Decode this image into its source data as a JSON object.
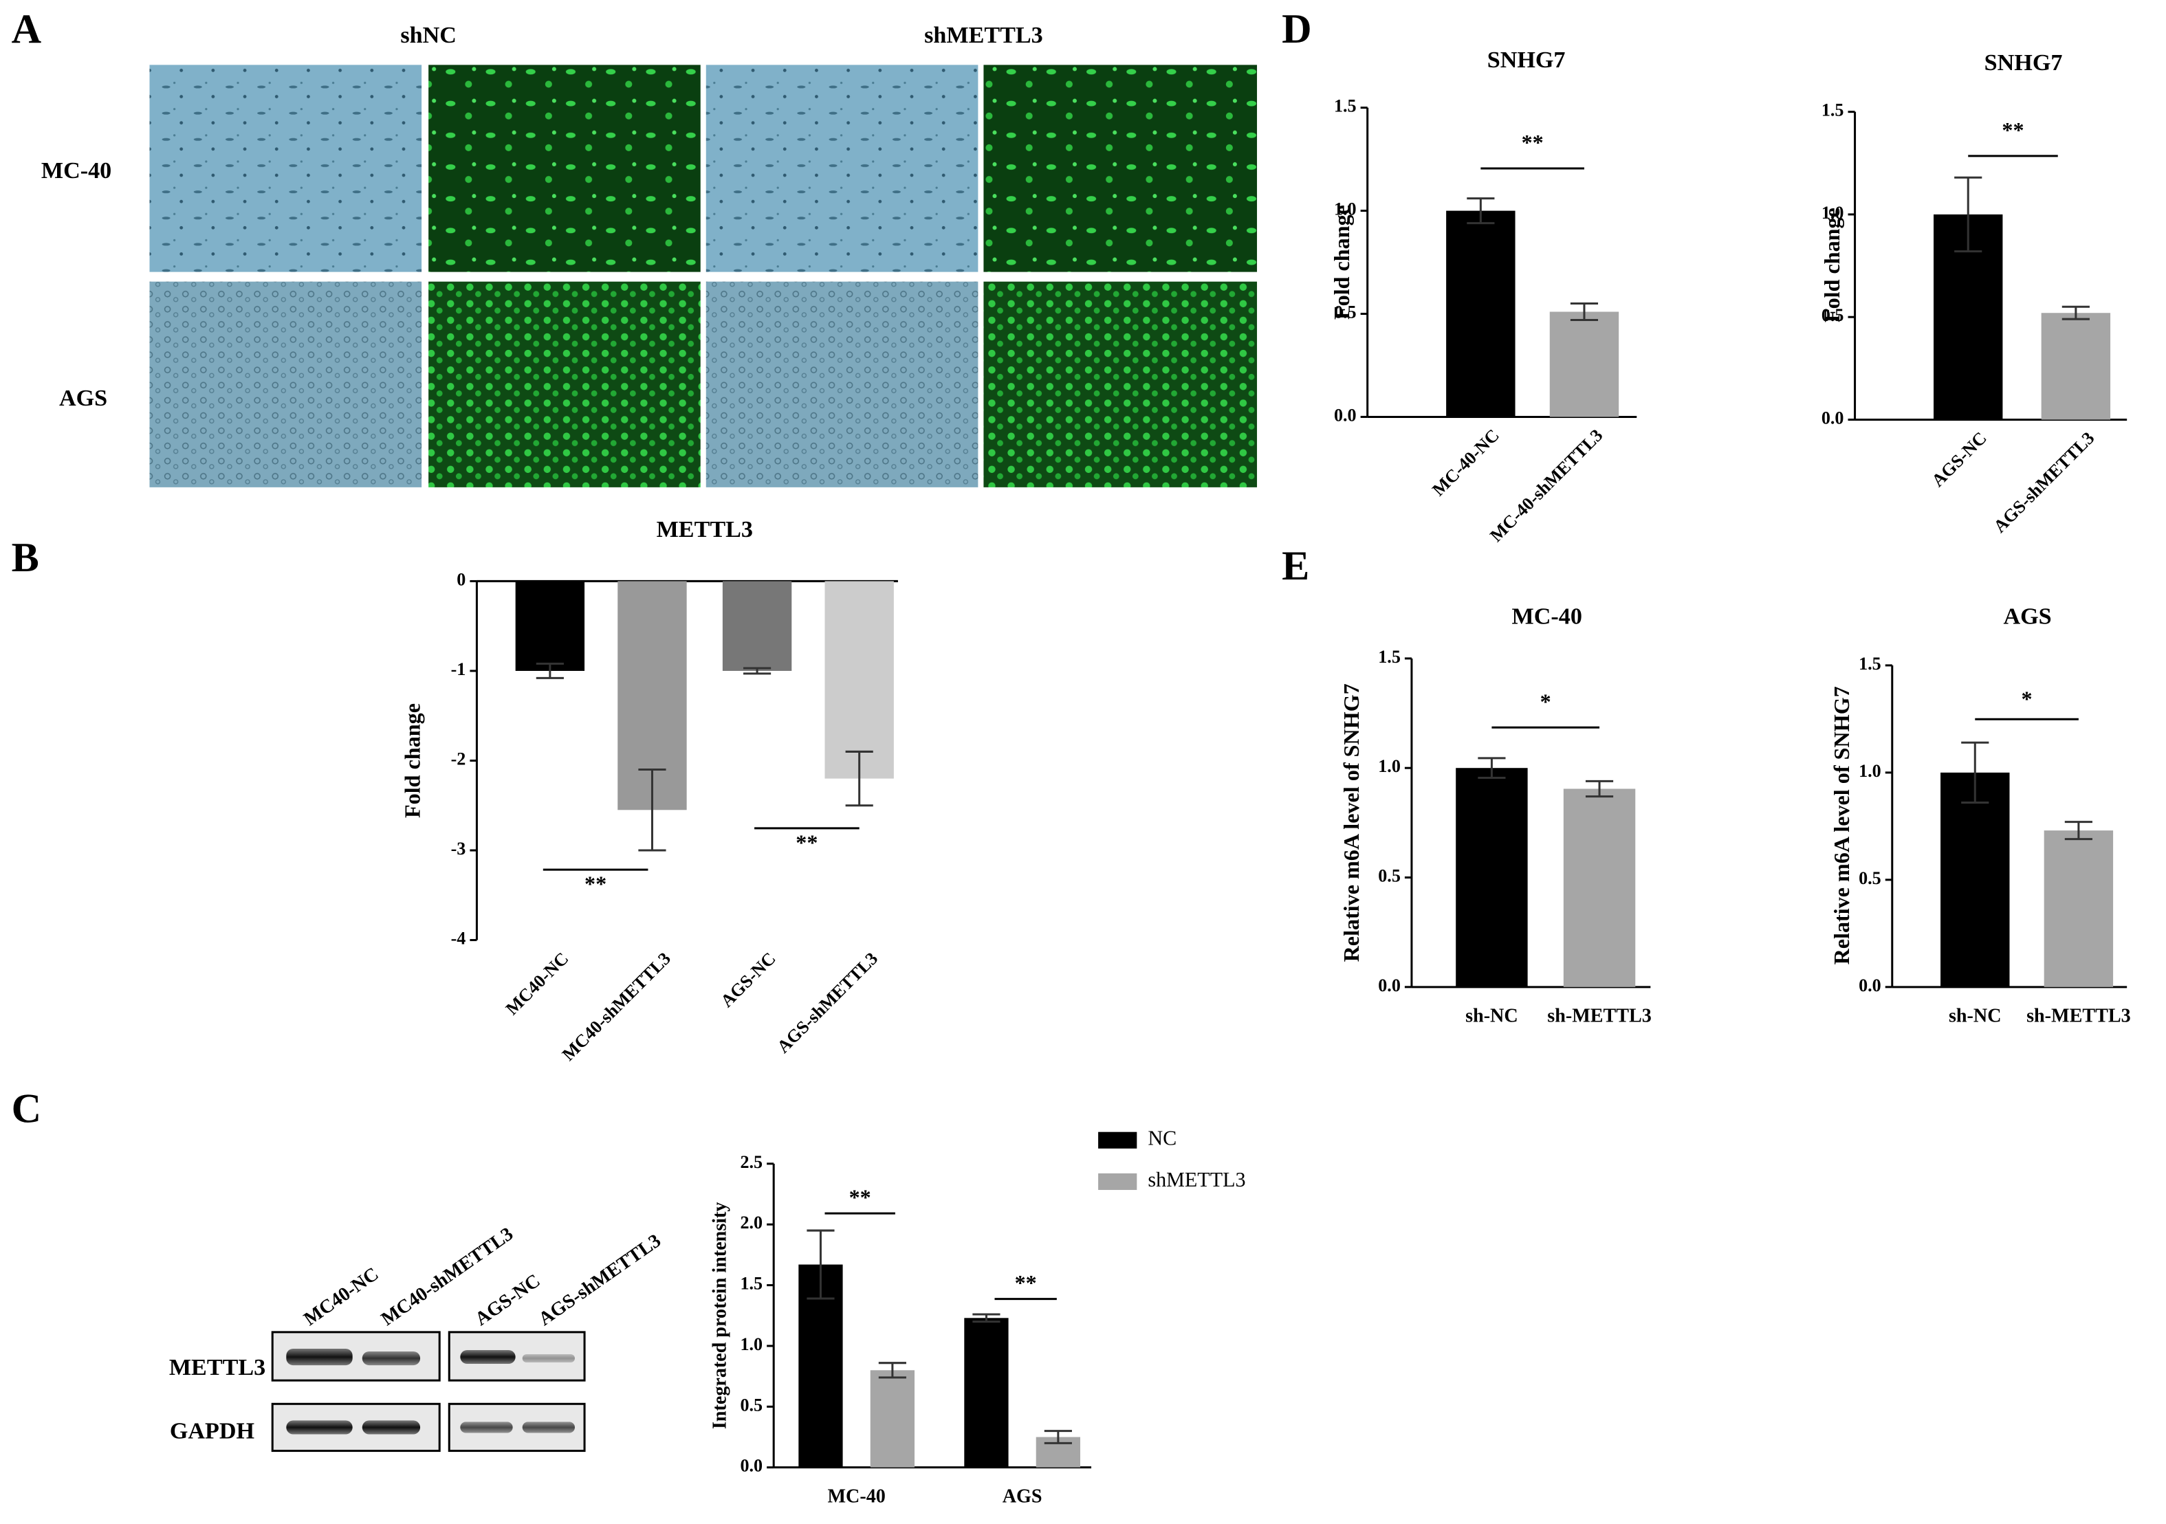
{
  "panel_labels": [
    "A",
    "B",
    "C",
    "D",
    "E"
  ],
  "panel_a": {
    "columns": [
      "shNC",
      "shMETTL3"
    ],
    "rows": [
      "MC-40",
      "AGS"
    ]
  },
  "panel_c_blot": {
    "lanes": [
      "MC40-NC",
      "MC40-shMETTL3",
      "AGS-NC",
      "AGS-shMETTL3"
    ],
    "proteins": [
      "METTL3",
      "GAPDH"
    ]
  },
  "chart_data": [
    {
      "type": "bar",
      "title": "METTL3",
      "ylabel": "Fold change",
      "categories": [
        "MC40-NC",
        "MC40-shMETTL3",
        "AGS-NC",
        "AGS-shMETTL3"
      ],
      "values": [
        -1,
        -2.55,
        -1,
        -2.2
      ],
      "errors": [
        0.08,
        0.45,
        0.03,
        0.3
      ],
      "colors": [
        "#000000",
        "#999999",
        "#777777",
        "#cccccc"
      ],
      "ylim": [
        -4,
        0
      ],
      "yticks": [
        -4,
        -3,
        -2,
        -1,
        0
      ],
      "annotations": [
        "**",
        "**"
      ]
    },
    {
      "type": "grouped-bar",
      "ylabel": "Integrated protein intensity",
      "categories": [
        "MC-40",
        "AGS"
      ],
      "series": [
        {
          "name": "NC",
          "color": "#000000",
          "values": [
            1.67,
            1.23
          ],
          "errors": [
            0.28,
            0.03
          ]
        },
        {
          "name": "shMETTL3",
          "color": "#a6a6a6",
          "values": [
            0.8,
            0.25
          ],
          "errors": [
            0.06,
            0.05
          ]
        }
      ],
      "ylim": [
        0,
        2.5
      ],
      "yticks": [
        {
          "value": 0,
          "label": "0.0"
        },
        0.5,
        {
          "value": 1,
          "label": "1.0"
        },
        1.5,
        {
          "value": 2,
          "label": "2.0"
        },
        2.5
      ],
      "annotations": [
        "**",
        "**"
      ],
      "legend": "top-right"
    },
    {
      "type": "bar",
      "title": "SNHG7",
      "ylabel": "Fold change",
      "categories": [
        "MC-40-NC",
        "MC-40-shMETTL3"
      ],
      "values": [
        1.0,
        0.51
      ],
      "errors": [
        0.06,
        0.04
      ],
      "colors": [
        "#000000",
        "#a6a6a6"
      ],
      "ylim": [
        0,
        1.5
      ],
      "yticks": [
        {
          "value": 0,
          "label": "0.0"
        },
        0.5,
        {
          "value": 1,
          "label": "1.0"
        },
        1.5
      ],
      "annotations": [
        "**"
      ]
    },
    {
      "type": "bar",
      "title": "SNHG7",
      "ylabel": "Fold change",
      "categories": [
        "AGS-NC",
        "AGS-shMETTL3"
      ],
      "values": [
        1.0,
        0.52
      ],
      "errors": [
        0.18,
        0.03
      ],
      "colors": [
        "#000000",
        "#a6a6a6"
      ],
      "ylim": [
        0,
        1.5
      ],
      "yticks": [
        {
          "value": 0,
          "label": "0.0"
        },
        0.5,
        {
          "value": 1,
          "label": "1.0"
        },
        1.5
      ],
      "annotations": [
        "**"
      ]
    },
    {
      "type": "bar",
      "title": "MC-40",
      "ylabel": "Relative m6A level of SNHG7",
      "categories": [
        "sh-NC",
        "sh-METTL3"
      ],
      "values": [
        1.0,
        0.905
      ],
      "errors": [
        0.045,
        0.035
      ],
      "colors": [
        "#000000",
        "#a6a6a6"
      ],
      "ylim": [
        0,
        1.5
      ],
      "yticks": [
        {
          "value": 0,
          "label": "0.0"
        },
        0.5,
        {
          "value": 1,
          "label": "1.0"
        },
        1.5
      ],
      "annotations": [
        "*"
      ]
    },
    {
      "type": "bar",
      "title": "AGS",
      "ylabel": "Relative m6A level of SNHG7",
      "categories": [
        "sh-NC",
        "sh-METTL3"
      ],
      "values": [
        1.0,
        0.73
      ],
      "errors": [
        0.14,
        0.04
      ],
      "colors": [
        "#000000",
        "#a6a6a6"
      ],
      "ylim": [
        0,
        1.5
      ],
      "yticks": [
        {
          "value": 0,
          "label": "0.0"
        },
        0.5,
        {
          "value": 1,
          "label": "1.0"
        },
        1.5
      ],
      "annotations": [
        "*"
      ]
    }
  ]
}
